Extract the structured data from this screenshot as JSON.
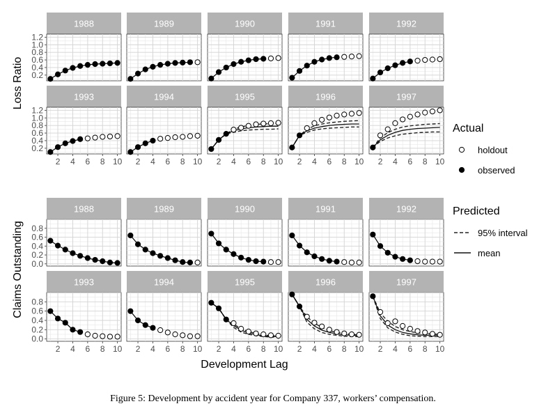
{
  "figure": {
    "caption": "Figure 5:   Development by accident year for Company 337, workers’ compensation.",
    "xlabel": "Development Lag",
    "legend_actual": {
      "title": "Actual",
      "items": [
        "holdout",
        "observed"
      ]
    },
    "legend_predicted": {
      "title": "Predicted",
      "items": [
        "95% interval",
        "mean"
      ]
    }
  },
  "chart_data": [
    {
      "type": "line",
      "ylabel": "Loss Ratio",
      "xticks": [
        2,
        4,
        6,
        8,
        10
      ],
      "yticks": [
        0.2,
        0.4,
        0.6,
        0.8,
        1.0,
        1.2
      ],
      "ytick_labels": [
        "0.2",
        "0.4",
        "0.6",
        "0.8",
        "1.0",
        "1.2"
      ],
      "xlim": [
        0.5,
        10.5
      ],
      "ylim": [
        0.05,
        1.28
      ],
      "panels": [
        {
          "year": "1988",
          "values": [
            0.1,
            0.22,
            0.32,
            0.39,
            0.44,
            0.47,
            0.49,
            0.5,
            0.51,
            0.52
          ],
          "observed_n": 10
        },
        {
          "year": "1989",
          "values": [
            0.1,
            0.24,
            0.35,
            0.42,
            0.47,
            0.5,
            0.52,
            0.53,
            0.54,
            0.54
          ],
          "observed_n": 9
        },
        {
          "year": "1990",
          "values": [
            0.11,
            0.28,
            0.4,
            0.49,
            0.55,
            0.59,
            0.62,
            0.63,
            0.64,
            0.65
          ],
          "observed_n": 8
        },
        {
          "year": "1991",
          "values": [
            0.13,
            0.31,
            0.45,
            0.55,
            0.61,
            0.65,
            0.67,
            0.68,
            0.69,
            0.7
          ],
          "observed_n": 7
        },
        {
          "year": "1992",
          "values": [
            0.11,
            0.27,
            0.38,
            0.46,
            0.52,
            0.56,
            0.58,
            0.6,
            0.61,
            0.62
          ],
          "observed_n": 6
        },
        {
          "year": "1993",
          "values": [
            0.1,
            0.23,
            0.33,
            0.39,
            0.44,
            0.46,
            0.48,
            0.5,
            0.51,
            0.52
          ],
          "observed_n": 5
        },
        {
          "year": "1994",
          "values": [
            0.1,
            0.23,
            0.33,
            0.4,
            0.45,
            0.47,
            0.49,
            0.5,
            0.52,
            0.53
          ],
          "observed_n": 4
        },
        {
          "year": "1995",
          "values": [
            0.18,
            0.42,
            0.58,
            0.69,
            0.74,
            0.79,
            0.83,
            0.85,
            0.86,
            0.87
          ],
          "observed_n": 3,
          "mean": [
            0.18,
            0.42,
            0.58,
            0.66,
            0.71,
            0.74,
            0.76,
            0.77,
            0.78,
            0.78
          ],
          "lower": [
            0.18,
            0.42,
            0.58,
            0.62,
            0.66,
            0.68,
            0.69,
            0.7,
            0.7,
            0.71
          ],
          "upper": [
            0.18,
            0.42,
            0.58,
            0.7,
            0.76,
            0.8,
            0.83,
            0.84,
            0.85,
            0.86
          ]
        },
        {
          "year": "1996",
          "values": [
            0.22,
            0.54,
            0.73,
            0.86,
            0.95,
            1.01,
            1.06,
            1.09,
            1.11,
            1.13
          ],
          "observed_n": 2,
          "mean": [
            0.22,
            0.54,
            0.66,
            0.73,
            0.77,
            0.8,
            0.82,
            0.83,
            0.84,
            0.84
          ],
          "lower": [
            0.22,
            0.54,
            0.62,
            0.68,
            0.71,
            0.73,
            0.74,
            0.75,
            0.76,
            0.76
          ],
          "upper": [
            0.22,
            0.54,
            0.7,
            0.79,
            0.84,
            0.87,
            0.89,
            0.91,
            0.92,
            0.93
          ]
        },
        {
          "year": "1997",
          "values": [
            0.22,
            0.54,
            0.7,
            0.86,
            0.96,
            1.03,
            1.09,
            1.14,
            1.17,
            1.2
          ],
          "observed_n": 1,
          "mean": [
            0.22,
            0.42,
            0.54,
            0.62,
            0.67,
            0.7,
            0.72,
            0.73,
            0.74,
            0.75
          ],
          "lower": [
            0.22,
            0.38,
            0.47,
            0.53,
            0.57,
            0.59,
            0.61,
            0.62,
            0.63,
            0.63
          ],
          "upper": [
            0.22,
            0.47,
            0.61,
            0.7,
            0.76,
            0.79,
            0.81,
            0.83,
            0.84,
            0.85
          ]
        }
      ]
    },
    {
      "type": "line",
      "ylabel": "Claims Outstanding",
      "xticks": [
        2,
        4,
        6,
        8,
        10
      ],
      "yticks": [
        0.0,
        0.2,
        0.4,
        0.6,
        0.8
      ],
      "ytick_labels": [
        "0.0",
        "0.2",
        "0.4",
        "0.6",
        "0.8"
      ],
      "xlim": [
        0.5,
        10.5
      ],
      "ylim": [
        -0.05,
        1.0
      ],
      "panels": [
        {
          "year": "1988",
          "values": [
            0.52,
            0.41,
            0.32,
            0.24,
            0.18,
            0.13,
            0.09,
            0.06,
            0.03,
            0.02
          ],
          "observed_n": 10
        },
        {
          "year": "1989",
          "values": [
            0.64,
            0.44,
            0.32,
            0.24,
            0.18,
            0.13,
            0.08,
            0.04,
            0.03,
            0.03
          ],
          "observed_n": 9
        },
        {
          "year": "1990",
          "values": [
            0.68,
            0.46,
            0.32,
            0.22,
            0.14,
            0.09,
            0.06,
            0.05,
            0.04,
            0.04
          ],
          "observed_n": 8
        },
        {
          "year": "1991",
          "values": [
            0.64,
            0.41,
            0.26,
            0.17,
            0.11,
            0.07,
            0.05,
            0.04,
            0.03,
            0.03
          ],
          "observed_n": 7
        },
        {
          "year": "1992",
          "values": [
            0.66,
            0.4,
            0.25,
            0.16,
            0.11,
            0.08,
            0.06,
            0.05,
            0.05,
            0.05
          ],
          "observed_n": 6
        },
        {
          "year": "1993",
          "values": [
            0.6,
            0.44,
            0.35,
            0.2,
            0.15,
            0.1,
            0.07,
            0.06,
            0.05,
            0.05
          ],
          "observed_n": 5
        },
        {
          "year": "1994",
          "values": [
            0.6,
            0.4,
            0.3,
            0.24,
            0.19,
            0.14,
            0.1,
            0.08,
            0.06,
            0.06
          ],
          "observed_n": 4
        },
        {
          "year": "1995",
          "values": [
            0.78,
            0.66,
            0.42,
            0.34,
            0.22,
            0.16,
            0.12,
            0.1,
            0.08,
            0.07
          ],
          "observed_n": 3,
          "mean": [
            0.78,
            0.66,
            0.42,
            0.29,
            0.19,
            0.13,
            0.09,
            0.07,
            0.06,
            0.05
          ],
          "lower": [
            0.78,
            0.66,
            0.42,
            0.25,
            0.15,
            0.1,
            0.07,
            0.05,
            0.04,
            0.04
          ],
          "upper": [
            0.78,
            0.66,
            0.42,
            0.32,
            0.22,
            0.16,
            0.12,
            0.09,
            0.07,
            0.06
          ]
        },
        {
          "year": "1996",
          "values": [
            0.96,
            0.7,
            0.48,
            0.35,
            0.27,
            0.2,
            0.15,
            0.12,
            0.1,
            0.09
          ],
          "observed_n": 2,
          "mean": [
            0.96,
            0.7,
            0.42,
            0.28,
            0.19,
            0.14,
            0.11,
            0.09,
            0.08,
            0.07
          ],
          "lower": [
            0.96,
            0.7,
            0.36,
            0.22,
            0.14,
            0.1,
            0.08,
            0.06,
            0.05,
            0.05
          ],
          "upper": [
            0.96,
            0.7,
            0.48,
            0.34,
            0.25,
            0.18,
            0.14,
            0.12,
            0.1,
            0.09
          ]
        },
        {
          "year": "1997",
          "values": [
            0.92,
            0.58,
            0.34,
            0.38,
            0.28,
            0.22,
            0.17,
            0.14,
            0.11,
            0.09
          ],
          "observed_n": 1,
          "mean": [
            0.92,
            0.5,
            0.3,
            0.2,
            0.14,
            0.11,
            0.09,
            0.08,
            0.08,
            0.08
          ],
          "lower": [
            0.92,
            0.44,
            0.24,
            0.15,
            0.1,
            0.07,
            0.06,
            0.05,
            0.05,
            0.05
          ],
          "upper": [
            0.92,
            0.56,
            0.38,
            0.27,
            0.2,
            0.16,
            0.13,
            0.12,
            0.11,
            0.1
          ]
        }
      ]
    }
  ]
}
